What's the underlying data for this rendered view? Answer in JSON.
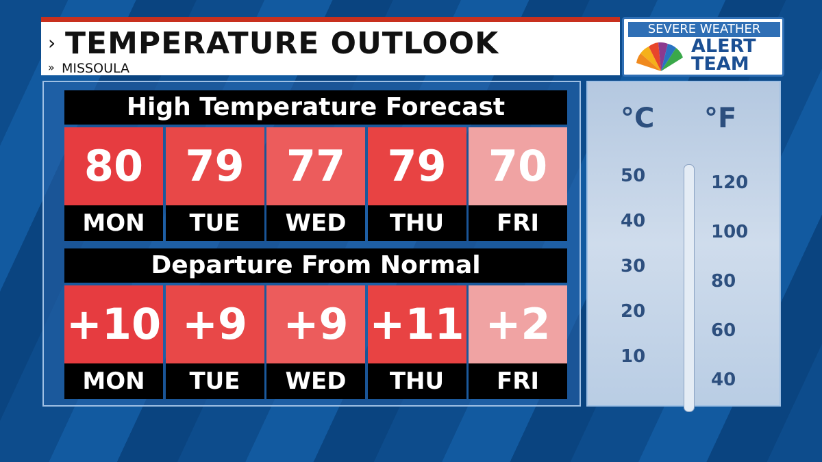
{
  "header": {
    "title": "TEMPERATURE OUTLOOK",
    "subtitle": "MISSOULA"
  },
  "logo": {
    "line1": "SEVERE WEATHER",
    "line2": "ALERT",
    "line3": "TEAM"
  },
  "tables": [
    {
      "title": "High Temperature Forecast",
      "cells": [
        {
          "value": "80",
          "day": "MON",
          "color": "#e63c40"
        },
        {
          "value": "79",
          "day": "TUE",
          "color": "#e84848"
        },
        {
          "value": "77",
          "day": "WED",
          "color": "#ec5c5c"
        },
        {
          "value": "79",
          "day": "THU",
          "color": "#e84343"
        },
        {
          "value": "70",
          "day": "FRI",
          "color": "#f0a3a3"
        }
      ]
    },
    {
      "title": "Departure From Normal",
      "cells": [
        {
          "value": "+10",
          "day": "MON",
          "color": "#e63c40"
        },
        {
          "value": "+9",
          "day": "TUE",
          "color": "#e84848"
        },
        {
          "value": "+9",
          "day": "WED",
          "color": "#ec5c5c"
        },
        {
          "value": "+11",
          "day": "THU",
          "color": "#e84343"
        },
        {
          "value": "+2",
          "day": "FRI",
          "color": "#f0a3a3"
        }
      ]
    }
  ],
  "thermometer": {
    "celsius_unit": "°C",
    "fahrenheit_unit": "°F",
    "celsius": [
      "50",
      "40",
      "30",
      "20",
      "10"
    ],
    "fahrenheit": [
      "120",
      "100",
      "80",
      "60",
      "40"
    ]
  }
}
